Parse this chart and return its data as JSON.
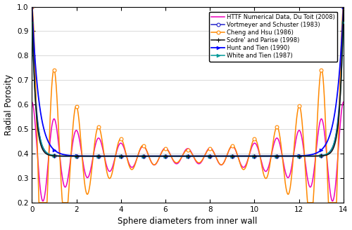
{
  "xlabel": "Sphere diameters from inner wall",
  "ylabel": "Radial Porosity",
  "xlim": [
    0,
    14
  ],
  "ylim": [
    0.2,
    1.0
  ],
  "xticks": [
    0,
    2,
    4,
    6,
    8,
    10,
    12,
    14
  ],
  "yticks": [
    0.2,
    0.3,
    0.4,
    0.5,
    0.6,
    0.7,
    0.8,
    0.9,
    1.0
  ],
  "eps_bulk": 0.39,
  "R_total": 14.0,
  "colors": {
    "httf": "#EE00BB",
    "vortmeyer": "#2222CC",
    "cheng": "#FF8800",
    "sodre": "#111111",
    "hunt": "#0000FF",
    "white": "#009999"
  },
  "legend_labels": {
    "httf": "HTTF Numerical Data, Du Toit (2008)",
    "vortmeyer": "Vortmeyer and Schuster (1983)",
    "cheng": "Cheng and Hsu (1986)",
    "sodre": "Sodre' and Parise (1998)",
    "hunt": "Hunt and Tien (1990)",
    "white": "White and Tien (1987)"
  },
  "marker_size": 3.5,
  "line_width": 1.1
}
